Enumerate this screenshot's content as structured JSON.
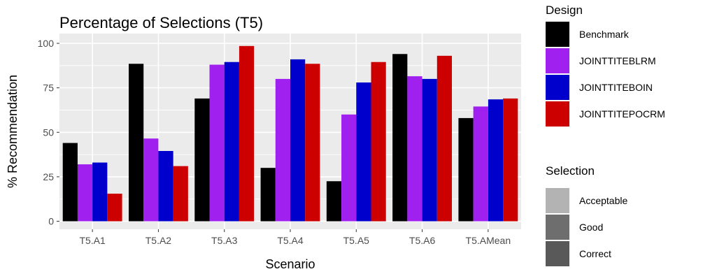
{
  "chart_data": {
    "type": "bar",
    "title": "Percentage of Selections (T5)",
    "xlabel": "Scenario",
    "ylabel": "% Recommendation",
    "ylim": [
      0,
      100
    ],
    "yticks": [
      0,
      25,
      50,
      75,
      100
    ],
    "grid": true,
    "categories": [
      "T5.A1",
      "T5.A2",
      "T5.A3",
      "T5.A4",
      "T5.A5",
      "T5.A6",
      "T5.AMean"
    ],
    "series": [
      {
        "name": "Benchmark",
        "color": "#000000",
        "values": [
          44,
          88.5,
          69,
          30,
          22.5,
          94,
          58
        ]
      },
      {
        "name": "JOINTTITEBLRM",
        "color": "#a020f0",
        "values": [
          32,
          46.5,
          88,
          80,
          60,
          81.5,
          64.5
        ]
      },
      {
        "name": "JOINTTITEBOIN",
        "color": "#0000cd",
        "values": [
          33,
          39.5,
          89.5,
          91,
          78,
          80,
          68.5
        ]
      },
      {
        "name": "JOINTTITEPOCRM",
        "color": "#cd0000",
        "values": [
          15.5,
          31,
          98.5,
          88.5,
          89.5,
          93,
          69
        ]
      }
    ],
    "legend": {
      "design_title": "Design",
      "selection_title": "Selection",
      "selection_items": [
        {
          "label": "Acceptable",
          "color": "#b3b3b3"
        },
        {
          "label": "Good",
          "color": "#6e6e6e"
        },
        {
          "label": "Correct",
          "color": "#595959"
        }
      ],
      "placement": "right"
    }
  }
}
